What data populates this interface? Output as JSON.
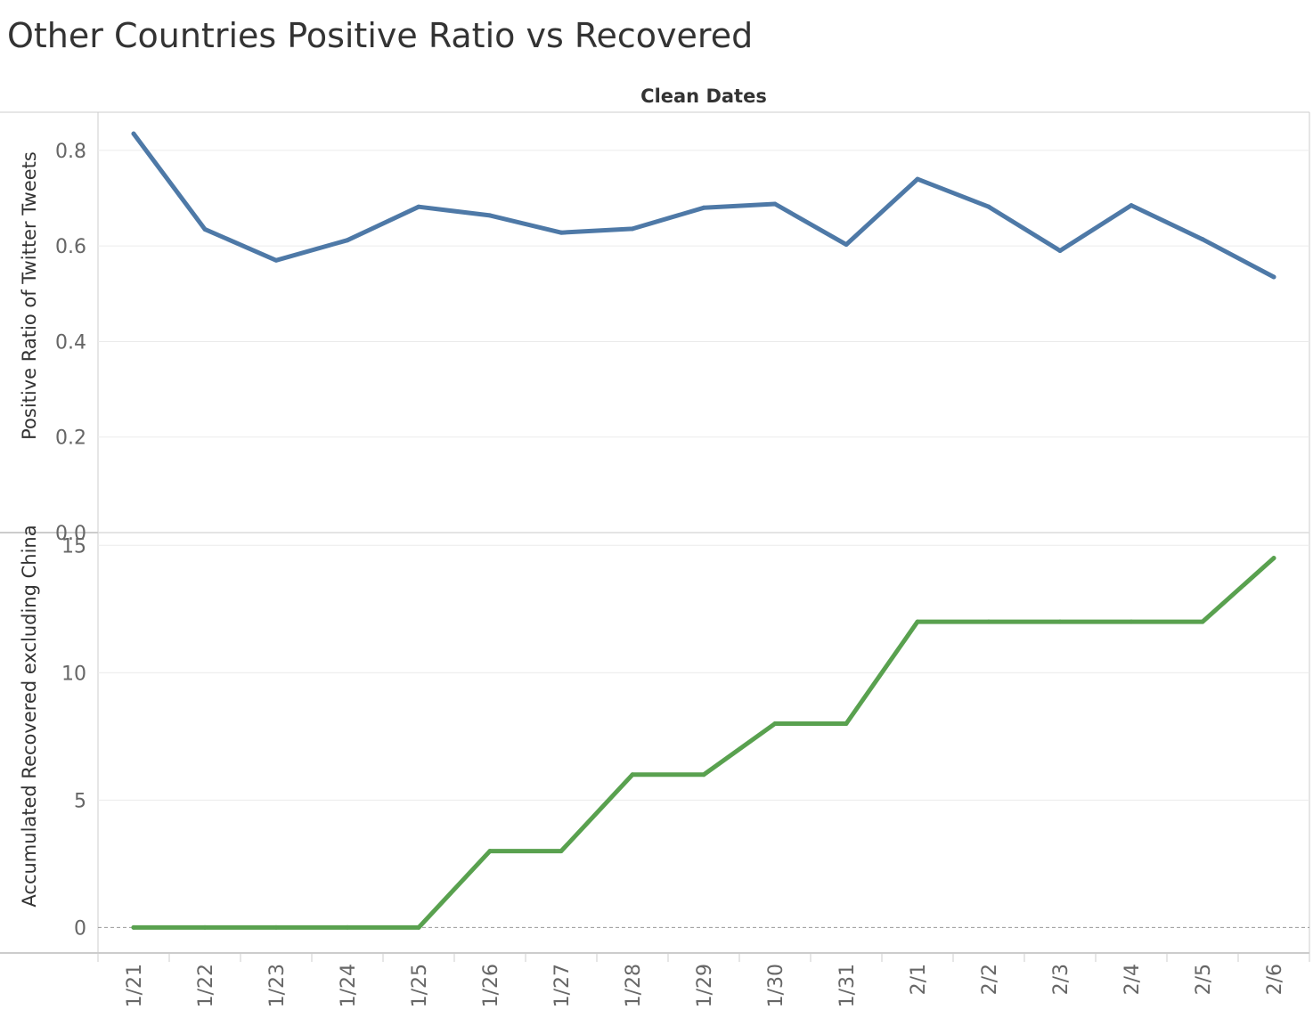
{
  "title": "Other Countries Positive Ratio vs Recovered",
  "chart_data": {
    "type": "line",
    "column_header": "Clean Dates",
    "categories": [
      "1/21",
      "1/22",
      "1/23",
      "1/24",
      "1/25",
      "1/26",
      "1/27",
      "1/28",
      "1/29",
      "1/30",
      "1/31",
      "2/1",
      "2/2",
      "2/3",
      "2/4",
      "2/5",
      "2/6"
    ],
    "panels": [
      {
        "ylabel": "Positive Ratio of Twitter Tweets",
        "ylim": [
          0,
          0.88
        ],
        "yticks": [
          0.0,
          0.2,
          0.4,
          0.6,
          0.8
        ],
        "ytick_labels": [
          "0.0",
          "0.2",
          "0.4",
          "0.6",
          "0.8"
        ],
        "color": "#4e79a7",
        "values": [
          0.835,
          0.635,
          0.57,
          0.612,
          0.682,
          0.664,
          0.628,
          0.636,
          0.68,
          0.688,
          0.603,
          0.74,
          0.682,
          0.59,
          0.685,
          0.614,
          0.535
        ]
      },
      {
        "ylabel": "Accumulated Recovered excluding China",
        "ylim": [
          -1,
          15.5
        ],
        "yticks": [
          0,
          5,
          10,
          15
        ],
        "ytick_labels": [
          "0",
          "5",
          "10",
          "15"
        ],
        "color": "#59a14f",
        "zero_line": true,
        "values": [
          0,
          0,
          0,
          0,
          0,
          3,
          3,
          6,
          6,
          8,
          8,
          12,
          12,
          12,
          12,
          12,
          14.5
        ]
      }
    ],
    "grid": true,
    "legend": "none"
  }
}
